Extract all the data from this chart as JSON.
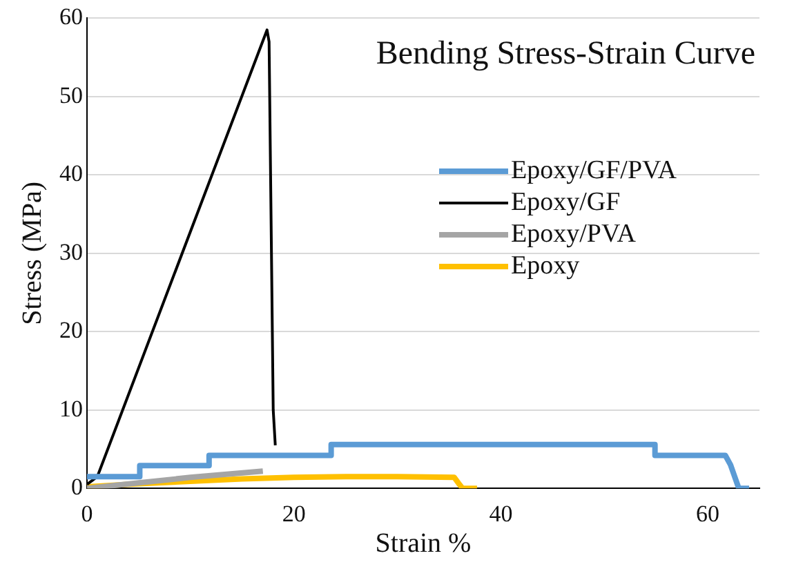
{
  "chart_data": {
    "type": "line",
    "title": "Bending Stress-Strain Curve",
    "xlabel": "Strain %",
    "ylabel": "Stress (MPa)",
    "xlim": [
      0,
      65
    ],
    "xticks": [
      0,
      20,
      40,
      60
    ],
    "ylim": [
      0,
      60
    ],
    "yticks": [
      0,
      10,
      20,
      30,
      40,
      50,
      60
    ],
    "grid": "y",
    "legend": "right",
    "marker": "none",
    "line_style": "solid",
    "series": [
      {
        "name": "Epoxy/GF/PVA",
        "color": "#5b9bd5",
        "x": [
          0,
          5.1,
          5.1,
          11.8,
          11.8,
          23.6,
          23.6,
          54.9,
          54.9,
          61.7,
          62.2,
          62.6,
          63,
          64
        ],
        "values": [
          1.5,
          1.5,
          2.9,
          2.9,
          4.2,
          4.2,
          5.6,
          5.6,
          4.2,
          4.2,
          3,
          1.5,
          0,
          0
        ]
      },
      {
        "name": "Epoxy/GF",
        "color": "#000000",
        "x": [
          0,
          0.5,
          1,
          17.4,
          17.6,
          18,
          18.2
        ],
        "values": [
          0.5,
          1,
          1.5,
          58.5,
          57,
          10,
          5.5
        ]
      },
      {
        "name": "Epoxy/PVA",
        "color": "#a5a5a5",
        "x": [
          0,
          5,
          10,
          17
        ],
        "values": [
          0,
          0.7,
          1.4,
          2.2
        ]
      },
      {
        "name": "Epoxy",
        "color": "#ffc000",
        "x": [
          0,
          5,
          10,
          15,
          20,
          25,
          30,
          35.5,
          36,
          36.3,
          37.7
        ],
        "values": [
          0.2,
          0.6,
          0.9,
          1.2,
          1.4,
          1.5,
          1.5,
          1.4,
          0.5,
          0,
          0
        ]
      }
    ]
  }
}
